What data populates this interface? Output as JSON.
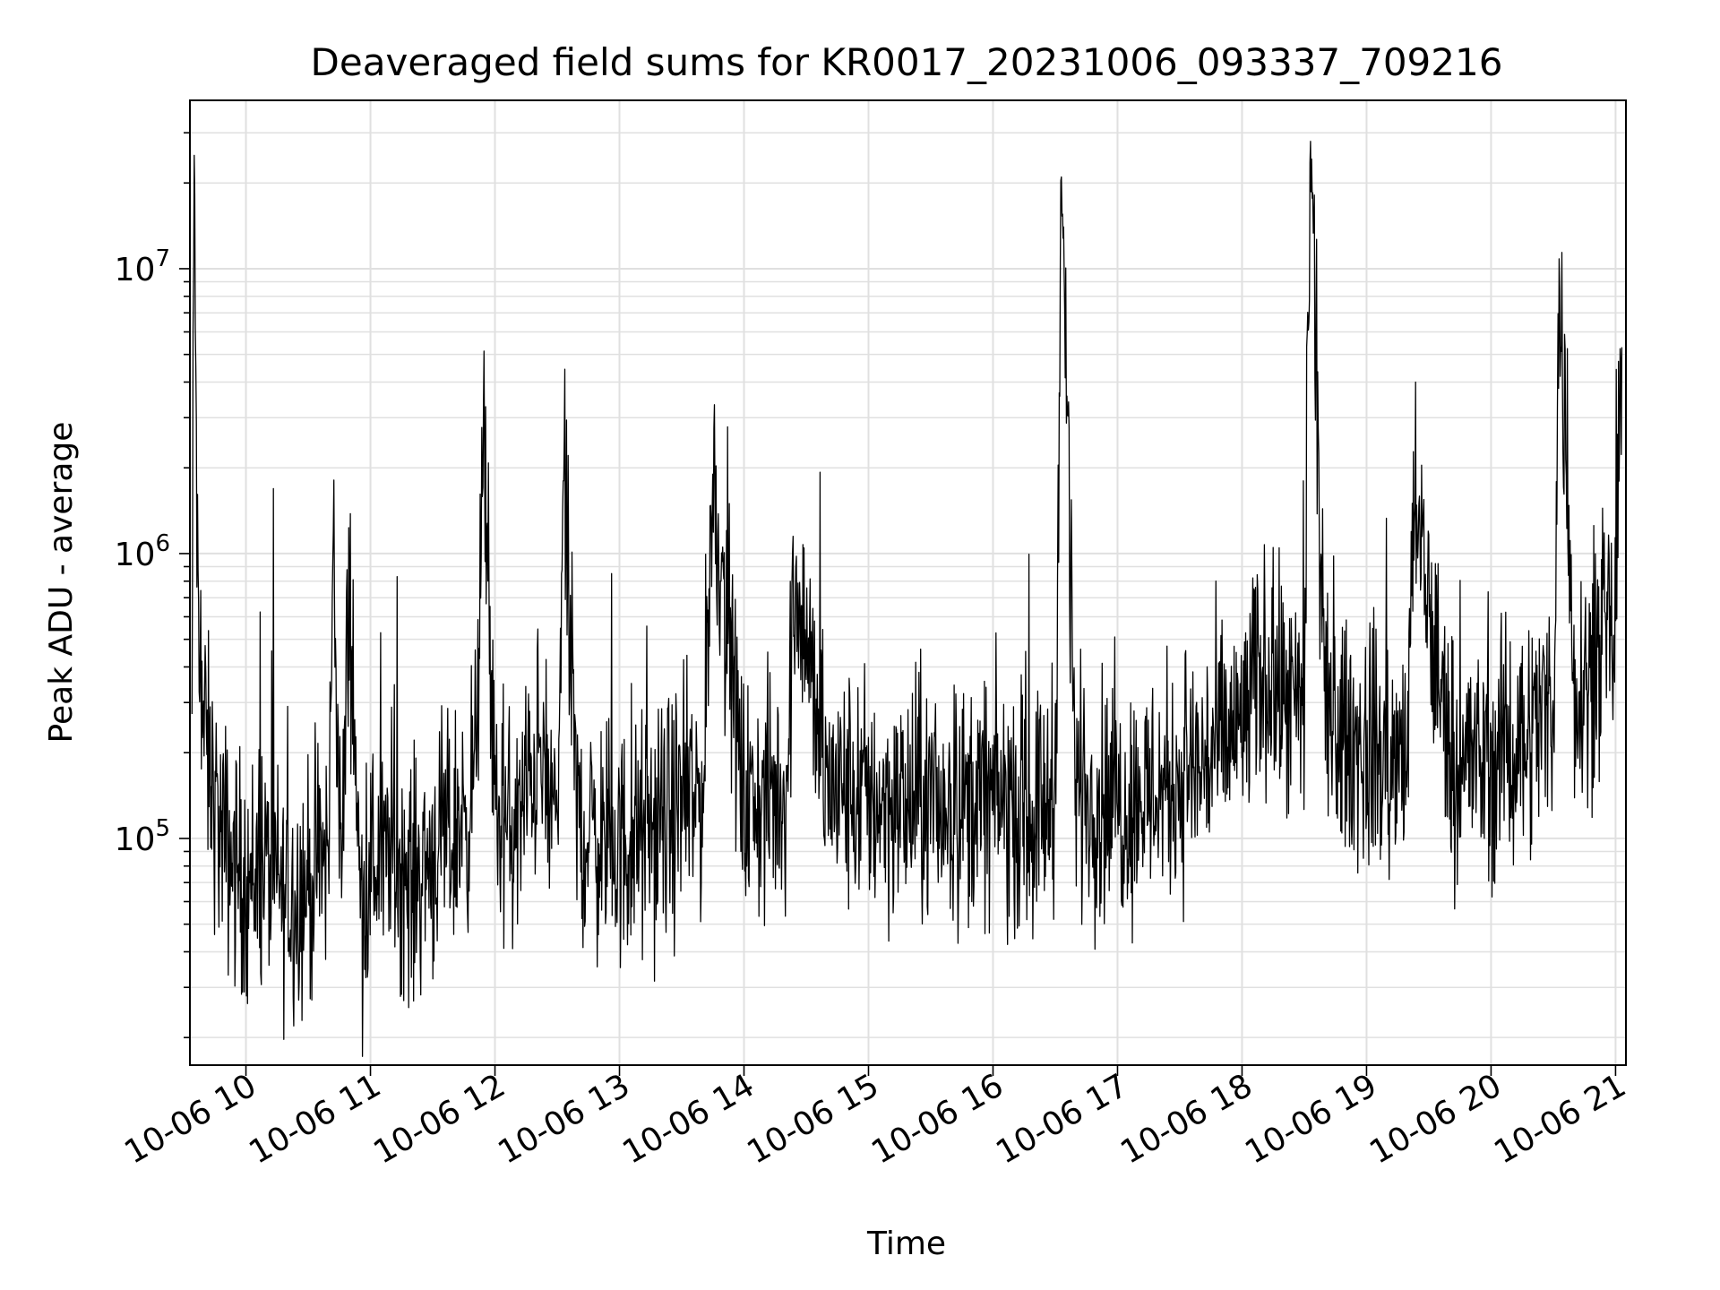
{
  "chart_data": {
    "type": "line",
    "title": "Deaveraged field sums for KR0017_20231006_093337_709216",
    "xlabel": "Time",
    "ylabel": "Peak ADU - average",
    "xscale": "time",
    "yscale": "log",
    "grid": true,
    "grid_minor": true,
    "legend": "none",
    "xlim": [
      "2023-10-06 09:33",
      "2023-10-06 21:05"
    ],
    "ylim": [
      16000,
      39000000
    ],
    "x_ticks": [
      "10-06 10",
      "10-06 11",
      "10-06 12",
      "10-06 13",
      "10-06 14",
      "10-06 15",
      "10-06 16",
      "10-06 17",
      "10-06 18",
      "10-06 19",
      "10-06 20",
      "10-06 21"
    ],
    "y_ticks": [
      {
        "value": 100000,
        "base": "10",
        "exp": "5"
      },
      {
        "value": 1000000,
        "base": "10",
        "exp": "6"
      },
      {
        "value": 10000000,
        "base": "10",
        "exp": "7"
      }
    ],
    "series_color": "#000000",
    "grid_color": "#e0e0e0",
    "series": [
      {
        "x": [
          "2023-10-06 09:34",
          "2023-10-06 09:35",
          "2023-10-06 09:37",
          "2023-10-06 09:41",
          "2023-10-06 09:48",
          "2023-10-06 10:00",
          "2023-10-06 10:10",
          "2023-10-06 10:20",
          "2023-10-06 10:30",
          "2023-10-06 10:40",
          "2023-10-06 10:42",
          "2023-10-06 10:46",
          "2023-10-06 10:50",
          "2023-10-06 10:55",
          "2023-10-06 11:00",
          "2023-10-06 11:10",
          "2023-10-06 11:20",
          "2023-10-06 11:30",
          "2023-10-06 11:40",
          "2023-10-06 11:50",
          "2023-10-06 11:55",
          "2023-10-06 12:00",
          "2023-10-06 12:10",
          "2023-10-06 12:20",
          "2023-10-06 12:30",
          "2023-10-06 12:33",
          "2023-10-06 12:40",
          "2023-10-06 12:50",
          "2023-10-06 13:00",
          "2023-10-06 13:10",
          "2023-10-06 13:20",
          "2023-10-06 13:30",
          "2023-10-06 13:40",
          "2023-10-06 13:45",
          "2023-10-06 14:00",
          "2023-10-06 14:20",
          "2023-10-06 14:25",
          "2023-10-06 14:40",
          "2023-10-06 15:00",
          "2023-10-06 15:20",
          "2023-10-06 15:40",
          "2023-10-06 16:00",
          "2023-10-06 16:20",
          "2023-10-06 16:30",
          "2023-10-06 16:33",
          "2023-10-06 16:40",
          "2023-10-06 17:00",
          "2023-10-06 17:20",
          "2023-10-06 17:40",
          "2023-10-06 18:00",
          "2023-10-06 18:10",
          "2023-10-06 18:20",
          "2023-10-06 18:30",
          "2023-10-06 18:33",
          "2023-10-06 18:40",
          "2023-10-06 19:00",
          "2023-10-06 19:20",
          "2023-10-06 19:22",
          "2023-10-06 19:40",
          "2023-10-06 20:00",
          "2023-10-06 20:20",
          "2023-10-06 20:30",
          "2023-10-06 20:33",
          "2023-10-06 20:40",
          "2023-10-06 20:50",
          "2023-10-06 20:57",
          "2023-10-06 21:00",
          "2023-10-06 21:03"
        ],
        "y": [
          250000,
          25000000,
          400000,
          200000,
          100000,
          70000,
          80000,
          60000,
          70000,
          90000,
          1200000,
          70000,
          800000,
          60000,
          80000,
          90000,
          70000,
          90000,
          100000,
          150000,
          2200000,
          120000,
          100000,
          200000,
          110000,
          1800000,
          110000,
          100000,
          90000,
          100000,
          110000,
          130000,
          140000,
          1900000,
          130000,
          140000,
          900000,
          150000,
          140000,
          130000,
          130000,
          140000,
          120000,
          150000,
          21000000,
          150000,
          130000,
          150000,
          180000,
          250000,
          400000,
          300000,
          250000,
          28000000,
          250000,
          200000,
          180000,
          1500000,
          200000,
          180000,
          250000,
          300000,
          8500000,
          350000,
          400000,
          500000,
          550000,
          5300000
        ]
      }
    ]
  }
}
